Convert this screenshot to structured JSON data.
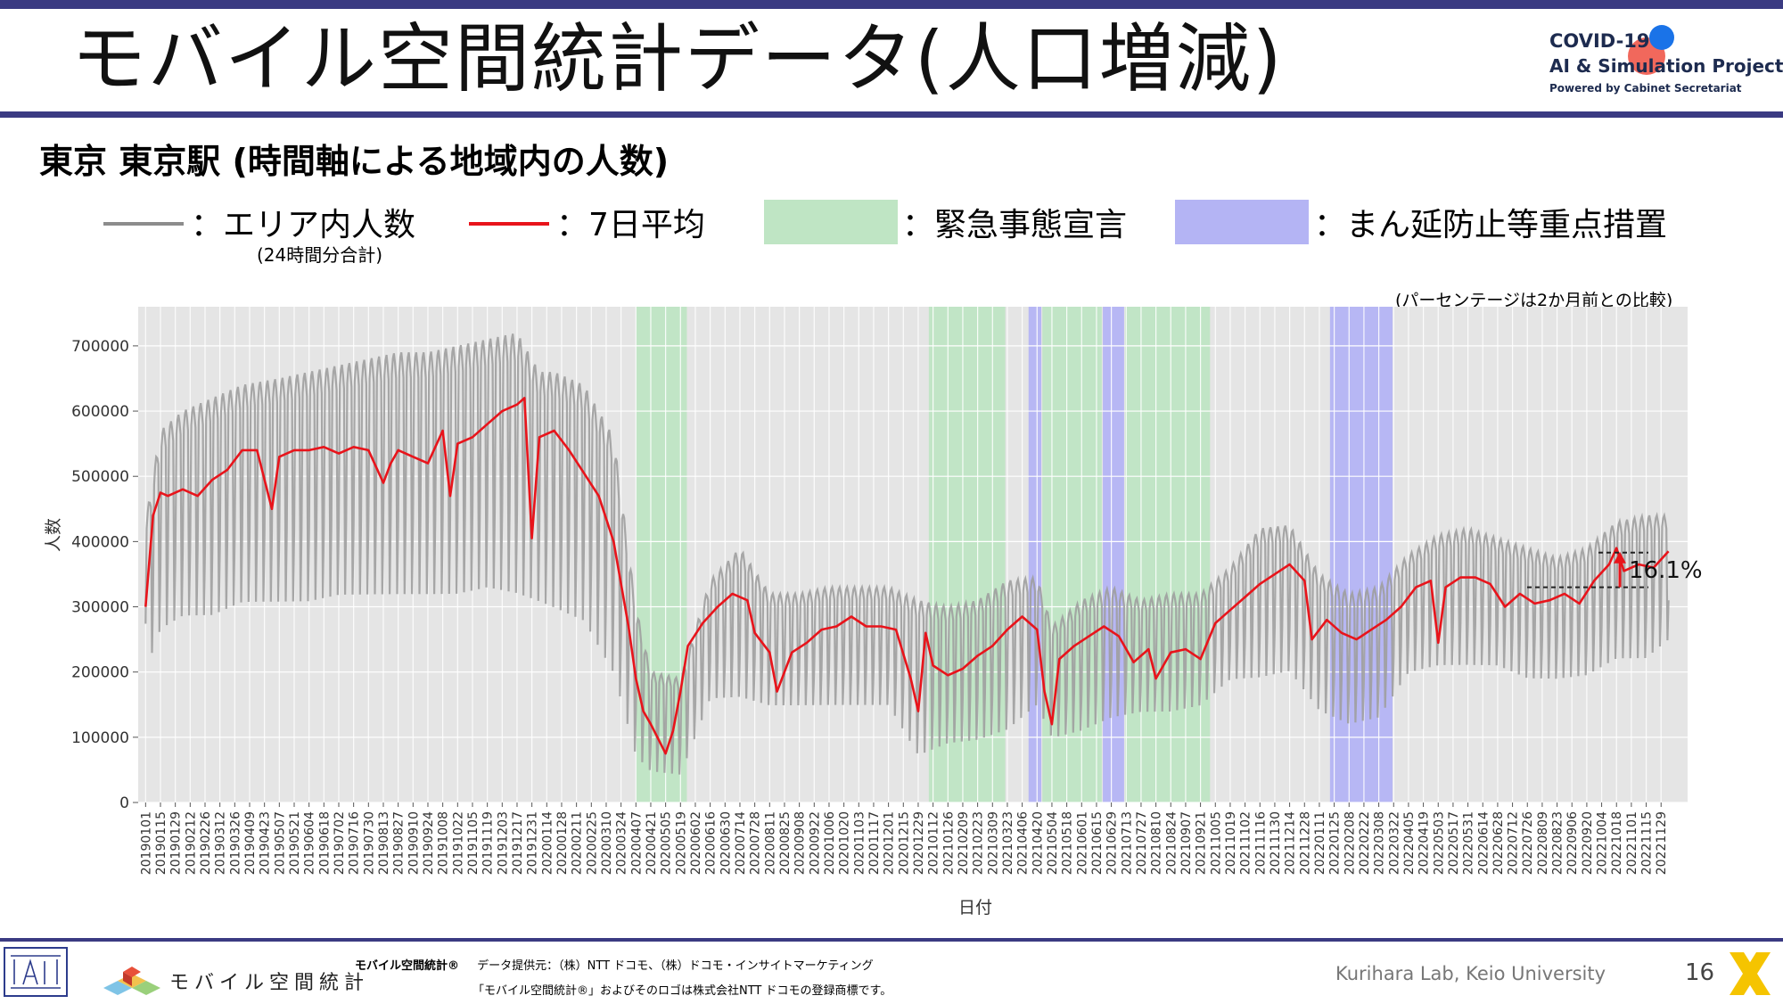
{
  "slide": {
    "title": "モバイル空間統計データ(人口増減)",
    "subtitle": "東京 東京駅 (時間軸による地域内の人数)",
    "page_number": "16",
    "accent_color": "#3a3a82"
  },
  "logo": {
    "line1": "COVID-19",
    "line2": "AI & Simulation Project",
    "line3": "Powered by Cabinet Secretariat"
  },
  "legend": {
    "raw_label": "：エリア内人数",
    "raw_sublabel": "(24時間分合計)",
    "avg_label": "：7日平均",
    "emergency_label": "：緊急事態宣言",
    "quasi_label": "：まん延防止等重点措置",
    "raw_color": "#8c8c8c",
    "avg_color": "#e8141b",
    "emergency_color": "#bfe5c4",
    "quasi_color": "#b4b4f4"
  },
  "note": "(パーセンテージは2か月前との比較)",
  "footer": {
    "brand_text": "モバイル空間統計",
    "credit_brand": "モバイル空間統計®",
    "credit_line1": "データ提供元：（株）NTT ドコモ、（株）ドコモ・インサイトマーケティング",
    "credit_line2": "「モバイル空間統計®」およびそのロゴは株式会社NTT ドコモの登録商標です。",
    "lab": "Kurihara Lab, Keio University"
  },
  "chart_data": {
    "type": "line",
    "title": "",
    "xlabel": "日付",
    "ylabel": "人数",
    "ylim": [
      0,
      760000
    ],
    "yticks": [
      0,
      100000,
      200000,
      300000,
      400000,
      500000,
      600000,
      700000
    ],
    "ytick_labels": [
      "0",
      "100000",
      "200000",
      "300000",
      "400000",
      "500000",
      "600000",
      "700000"
    ],
    "xlim": [
      "2018-12-25",
      "2022-12-24"
    ],
    "x_tick_labels": [
      "20190101",
      "20190115",
      "20190129",
      "20190212",
      "20190226",
      "20190312",
      "20190326",
      "20190409",
      "20190423",
      "20190507",
      "20190521",
      "20190604",
      "20190618",
      "20190702",
      "20190716",
      "20190730",
      "20190813",
      "20190827",
      "20190910",
      "20190924",
      "20191008",
      "20191022",
      "20191105",
      "20191119",
      "20191203",
      "20191217",
      "20191231",
      "20200114",
      "20200128",
      "20200211",
      "20200225",
      "20200310",
      "20200324",
      "20200407",
      "20200421",
      "20200505",
      "20200519",
      "20200602",
      "20200616",
      "20200630",
      "20200714",
      "20200728",
      "20200811",
      "20200825",
      "20200908",
      "20200922",
      "20201006",
      "20201020",
      "20201103",
      "20201117",
      "20201201",
      "20201215",
      "20201229",
      "20210112",
      "20210126",
      "20210209",
      "20210223",
      "20210309",
      "20210323",
      "20210406",
      "20210420",
      "20210504",
      "20210518",
      "20210601",
      "20210615",
      "20210629",
      "20210713",
      "20210727",
      "20210810",
      "20210824",
      "20210907",
      "20210921",
      "20211005",
      "20211019",
      "20211102",
      "20211116",
      "20211130",
      "20211214",
      "20211228",
      "20220111",
      "20220125",
      "20220208",
      "20220222",
      "20220308",
      "20220322",
      "20220405",
      "20220419",
      "20220503",
      "20220517",
      "20220531",
      "20220614",
      "20220628",
      "20220712",
      "20220726",
      "20220809",
      "20220823",
      "20220906",
      "20220920",
      "20221004",
      "20221018",
      "20221101",
      "20221115",
      "20221129"
    ],
    "grid": true,
    "legend": "top",
    "shaded_periods": [
      {
        "kind": "緊急事態宣言",
        "start": "2020-04-07",
        "end": "2020-05-25"
      },
      {
        "kind": "緊急事態宣言",
        "start": "2021-01-08",
        "end": "2021-03-21"
      },
      {
        "kind": "まん延防止等重点措置",
        "start": "2021-04-12",
        "end": "2021-04-24"
      },
      {
        "kind": "緊急事態宣言",
        "start": "2021-04-25",
        "end": "2021-06-20"
      },
      {
        "kind": "まん延防止等重点措置",
        "start": "2021-06-21",
        "end": "2021-07-11"
      },
      {
        "kind": "緊急事態宣言",
        "start": "2021-07-12",
        "end": "2021-09-30"
      },
      {
        "kind": "まん延防止等重点措置",
        "start": "2022-01-21",
        "end": "2022-03-21"
      }
    ],
    "series": [
      {
        "name": "7日平均",
        "x": [
          "2019-01-01",
          "2019-01-08",
          "2019-01-15",
          "2019-01-22",
          "2019-02-05",
          "2019-02-19",
          "2019-03-05",
          "2019-03-19",
          "2019-04-02",
          "2019-04-16",
          "2019-04-30",
          "2019-05-07",
          "2019-05-21",
          "2019-06-04",
          "2019-06-18",
          "2019-07-02",
          "2019-07-16",
          "2019-07-30",
          "2019-08-13",
          "2019-08-20",
          "2019-08-27",
          "2019-09-10",
          "2019-09-24",
          "2019-10-08",
          "2019-10-15",
          "2019-10-22",
          "2019-11-05",
          "2019-11-19",
          "2019-12-03",
          "2019-12-17",
          "2019-12-24",
          "2019-12-31",
          "2020-01-07",
          "2020-01-21",
          "2020-02-04",
          "2020-02-18",
          "2020-03-03",
          "2020-03-17",
          "2020-03-31",
          "2020-04-07",
          "2020-04-14",
          "2020-04-21",
          "2020-05-05",
          "2020-05-12",
          "2020-05-19",
          "2020-05-26",
          "2020-06-09",
          "2020-06-23",
          "2020-07-07",
          "2020-07-21",
          "2020-07-28",
          "2020-08-11",
          "2020-08-18",
          "2020-09-01",
          "2020-09-15",
          "2020-09-29",
          "2020-10-13",
          "2020-10-27",
          "2020-11-10",
          "2020-11-24",
          "2020-12-08",
          "2020-12-22",
          "2020-12-29",
          "2021-01-05",
          "2021-01-12",
          "2021-01-26",
          "2021-02-09",
          "2021-02-23",
          "2021-03-09",
          "2021-03-23",
          "2021-04-06",
          "2021-04-20",
          "2021-04-27",
          "2021-05-04",
          "2021-05-11",
          "2021-05-25",
          "2021-06-08",
          "2021-06-22",
          "2021-07-06",
          "2021-07-20",
          "2021-08-03",
          "2021-08-10",
          "2021-08-24",
          "2021-09-07",
          "2021-09-21",
          "2021-10-05",
          "2021-10-19",
          "2021-11-02",
          "2021-11-16",
          "2021-11-30",
          "2021-12-14",
          "2021-12-28",
          "2022-01-04",
          "2022-01-18",
          "2022-02-01",
          "2022-02-15",
          "2022-03-01",
          "2022-03-15",
          "2022-03-29",
          "2022-04-12",
          "2022-04-26",
          "2022-05-03",
          "2022-05-10",
          "2022-05-24",
          "2022-06-07",
          "2022-06-21",
          "2022-07-05",
          "2022-07-19",
          "2022-08-02",
          "2022-08-16",
          "2022-08-30",
          "2022-09-13",
          "2022-09-27",
          "2022-10-11",
          "2022-10-18",
          "2022-10-25",
          "2022-11-08",
          "2022-11-22",
          "2022-12-06"
        ],
        "values": [
          300000,
          440000,
          475000,
          470000,
          480000,
          470000,
          495000,
          510000,
          540000,
          540000,
          450000,
          530000,
          540000,
          540000,
          545000,
          535000,
          545000,
          540000,
          490000,
          520000,
          540000,
          530000,
          520000,
          570000,
          470000,
          550000,
          560000,
          580000,
          600000,
          610000,
          620000,
          405000,
          560000,
          570000,
          540000,
          505000,
          470000,
          400000,
          270000,
          190000,
          140000,
          120000,
          75000,
          110000,
          170000,
          240000,
          275000,
          300000,
          320000,
          310000,
          260000,
          230000,
          170000,
          230000,
          245000,
          265000,
          270000,
          285000,
          270000,
          270000,
          265000,
          190000,
          140000,
          260000,
          210000,
          195000,
          205000,
          225000,
          240000,
          265000,
          285000,
          265000,
          170000,
          120000,
          220000,
          240000,
          255000,
          270000,
          255000,
          215000,
          235000,
          190000,
          230000,
          235000,
          220000,
          275000,
          295000,
          315000,
          335000,
          350000,
          365000,
          340000,
          250000,
          280000,
          260000,
          250000,
          265000,
          280000,
          300000,
          330000,
          340000,
          245000,
          330000,
          345000,
          345000,
          335000,
          300000,
          320000,
          305000,
          310000,
          320000,
          305000,
          340000,
          365000,
          390000,
          355000,
          365000,
          360000,
          385000
        ]
      },
      {
        "name": "エリア内人数",
        "envelope": true,
        "x": [
          "2019-01-01",
          "2019-01-15",
          "2019-02-05",
          "2019-03-05",
          "2019-04-02",
          "2019-05-07",
          "2019-06-04",
          "2019-07-02",
          "2019-07-30",
          "2019-08-27",
          "2019-09-24",
          "2019-10-22",
          "2019-11-19",
          "2019-12-17",
          "2020-01-07",
          "2020-01-21",
          "2020-02-18",
          "2020-03-17",
          "2020-04-07",
          "2020-04-21",
          "2020-05-19",
          "2020-06-16",
          "2020-07-14",
          "2020-08-11",
          "2020-09-08",
          "2020-10-06",
          "2020-11-03",
          "2020-12-01",
          "2020-12-29",
          "2021-01-26",
          "2021-02-23",
          "2021-03-23",
          "2021-04-20",
          "2021-05-04",
          "2021-06-01",
          "2021-06-29",
          "2021-07-27",
          "2021-08-24",
          "2021-09-21",
          "2021-10-19",
          "2021-11-16",
          "2021-12-14",
          "2022-01-11",
          "2022-02-08",
          "2022-03-08",
          "2022-04-05",
          "2022-05-03",
          "2022-05-31",
          "2022-06-28",
          "2022-07-26",
          "2022-08-23",
          "2022-09-20",
          "2022-10-18",
          "2022-11-15",
          "2022-12-06"
        ],
        "high": [
          430000,
          570000,
          600000,
          620000,
          640000,
          650000,
          660000,
          670000,
          680000,
          690000,
          690000,
          700000,
          710000,
          720000,
          660000,
          660000,
          640000,
          560000,
          300000,
          200000,
          190000,
          340000,
          390000,
          320000,
          320000,
          330000,
          330000,
          330000,
          310000,
          300000,
          310000,
          340000,
          345000,
          270000,
          310000,
          330000,
          310000,
          320000,
          320000,
          360000,
          420000,
          425000,
          350000,
          320000,
          330000,
          380000,
          410000,
          420000,
          405000,
          390000,
          375000,
          390000,
          430000,
          440000,
          440000
        ],
        "low": [
          190000,
          250000,
          270000,
          270000,
          290000,
          290000,
          290000,
          300000,
          300000,
          300000,
          300000,
          300000,
          310000,
          300000,
          290000,
          280000,
          260000,
          180000,
          60000,
          40000,
          35000,
          150000,
          150000,
          140000,
          140000,
          140000,
          140000,
          140000,
          60000,
          80000,
          85000,
          100000,
          140000,
          90000,
          100000,
          120000,
          130000,
          130000,
          140000,
          180000,
          180000,
          190000,
          130000,
          110000,
          120000,
          190000,
          200000,
          200000,
          200000,
          180000,
          180000,
          185000,
          210000,
          210000,
          240000
        ]
      }
    ],
    "annotation": {
      "text": "16.1%",
      "from_value": 330000,
      "to_value": 383000
    }
  }
}
